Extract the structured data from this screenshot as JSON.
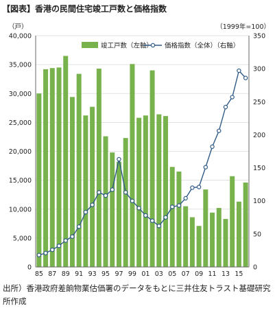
{
  "title": "【図表】香港の民間住宅竣工戸数と価格指数",
  "source_note": "出所）香港政府差餉物業估価署のデータをもとに三井住友トラスト基礎研究所作成",
  "colors": {
    "bar": "#77b24c",
    "line": "#2e5a87",
    "marker_fill": "#ffffff",
    "grid": "#d9d9d9"
  },
  "chart_data": {
    "type": "bar",
    "left_unit": "（戸）",
    "right_unit": "（1999年=100）",
    "x_tick_labels": [
      "85",
      "87",
      "89",
      "91",
      "93",
      "95",
      "97",
      "99",
      "01",
      "03",
      "05",
      "07",
      "09",
      "11",
      "13",
      "15"
    ],
    "left_ticks": [
      "0",
      "5,000",
      "10,000",
      "15,000",
      "20,000",
      "25,000",
      "30,000",
      "35,000",
      "40,000"
    ],
    "right_ticks": [
      "0",
      "50",
      "100",
      "150",
      "200",
      "250",
      "300",
      "350"
    ],
    "ylim_left": [
      0,
      40000
    ],
    "ylim_right": [
      0,
      350
    ],
    "grid": true,
    "legend_position": "top",
    "x": [
      1985,
      1986,
      1987,
      1988,
      1989,
      1990,
      1991,
      1992,
      1993,
      1994,
      1995,
      1996,
      1997,
      1998,
      1999,
      2000,
      2001,
      2002,
      2003,
      2004,
      2005,
      2006,
      2007,
      2008,
      2009,
      2010,
      2011,
      2012,
      2013,
      2014,
      2015,
      2016
    ],
    "series": [
      {
        "name": "竣工戸数（左軸）",
        "type": "bar",
        "axis": "left",
        "values": [
          30000,
          34200,
          34400,
          34500,
          36500,
          29400,
          33400,
          26200,
          27700,
          34300,
          22600,
          19800,
          18200,
          22300,
          35100,
          25800,
          26200,
          34000,
          26400,
          26100,
          17300,
          16500,
          10500,
          8600,
          7100,
          13400,
          9400,
          10200,
          8300,
          15700,
          11300,
          14600
        ]
      },
      {
        "name": "価格指数（全体）（右軸）",
        "type": "line",
        "axis": "right",
        "values": [
          18,
          21,
          26,
          32,
          40,
          46,
          61,
          83,
          94,
          113,
          108,
          117,
          163,
          113,
          100,
          89,
          78,
          70,
          62,
          75,
          91,
          93,
          104,
          120,
          121,
          151,
          182,
          206,
          242,
          257,
          297,
          286
        ]
      }
    ]
  }
}
